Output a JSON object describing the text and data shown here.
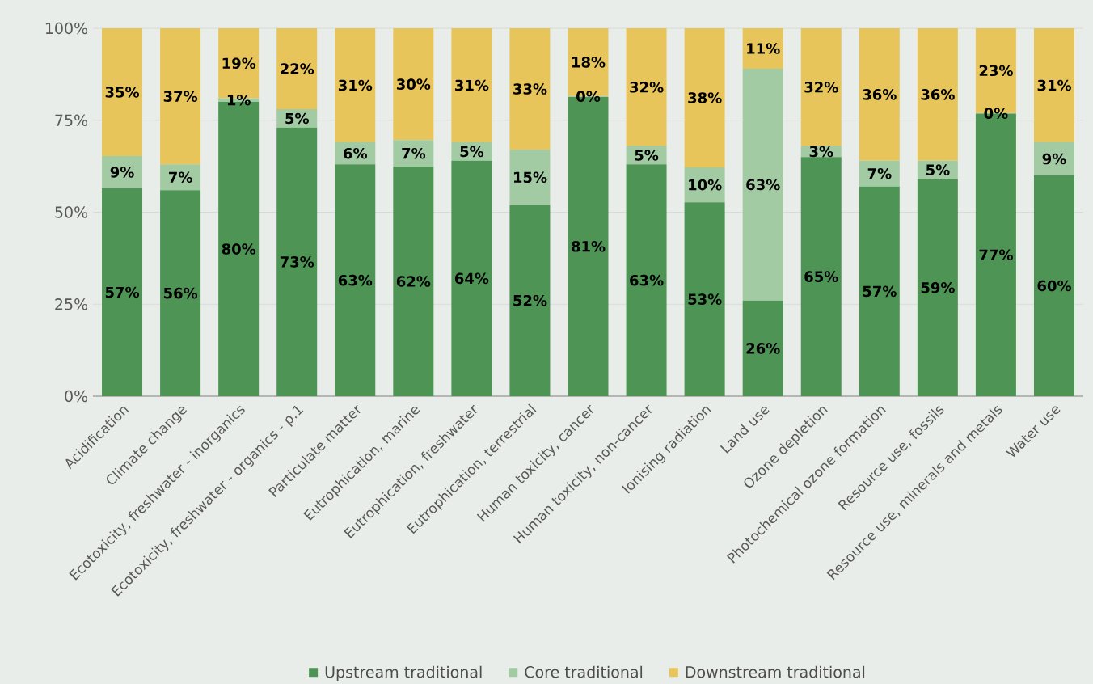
{
  "chart_data": {
    "type": "bar",
    "stacked": true,
    "grid": "y",
    "legend": "bottom",
    "data_labels": true,
    "categories": [
      "Acidification",
      "Climate change",
      "Ecotoxicity, freshwater - inorganics",
      "Ecotoxicity, freshwater - organics - p.1",
      "Particulate matter",
      "Eutrophication, marine",
      "Eutrophication, freshwater",
      "Eutrophication, terrestrial",
      "Human toxicity, cancer",
      "Human toxicity, non-cancer",
      "Ionising radiation",
      "Land use",
      "Ozone depletion",
      "Photochemical ozone formation",
      "Resource use, fossils",
      "Resource use, minerals and metals",
      "Water use"
    ],
    "ylim": [
      0,
      100
    ],
    "yticks": [
      {
        "value": 0,
        "label": "0%"
      },
      {
        "value": 25,
        "label": "25%"
      },
      {
        "value": 50,
        "label": "50%"
      },
      {
        "value": 75,
        "label": "75%"
      },
      {
        "value": 100,
        "label": "100%"
      }
    ],
    "series": [
      {
        "name": "Upstream traditional",
        "color": "#4e9555",
        "values": [
          56.5,
          56,
          80,
          73,
          63,
          62.4,
          64,
          52,
          81.4,
          63,
          52.7,
          26,
          65,
          57,
          59,
          76.8,
          60
        ],
        "value_labels": [
          "57%",
          "56%",
          "80%",
          "73%",
          "63%",
          "62%",
          "64%",
          "52%",
          "81%",
          "63%",
          "53%",
          "26%",
          "65%",
          "57%",
          "59%",
          "77%",
          "60%"
        ]
      },
      {
        "name": "Core traditional",
        "color": "#a3cba3",
        "values": [
          8.8,
          7,
          1,
          5,
          6,
          7.2,
          5,
          15,
          0.2,
          5,
          9.5,
          63,
          3,
          7,
          5,
          0.2,
          9
        ],
        "value_labels": [
          "9%",
          "7%",
          "1%",
          "5%",
          "6%",
          "7%",
          "5%",
          "15%",
          "0%",
          "5%",
          "10%",
          "63%",
          "3%",
          "7%",
          "5%",
          "0%",
          "9%"
        ]
      },
      {
        "name": "Downstream traditional",
        "color": "#e8c55a",
        "values": [
          34.7,
          37,
          19,
          22,
          31,
          30.4,
          31,
          33,
          18.4,
          32,
          37.8,
          11,
          32,
          36,
          36,
          23,
          31
        ],
        "value_labels": [
          "35%",
          "37%",
          "19%",
          "22%",
          "31%",
          "30%",
          "31%",
          "33%",
          "18%",
          "32%",
          "38%",
          "11%",
          "32%",
          "36%",
          "36%",
          "23%",
          "31%"
        ]
      }
    ]
  }
}
